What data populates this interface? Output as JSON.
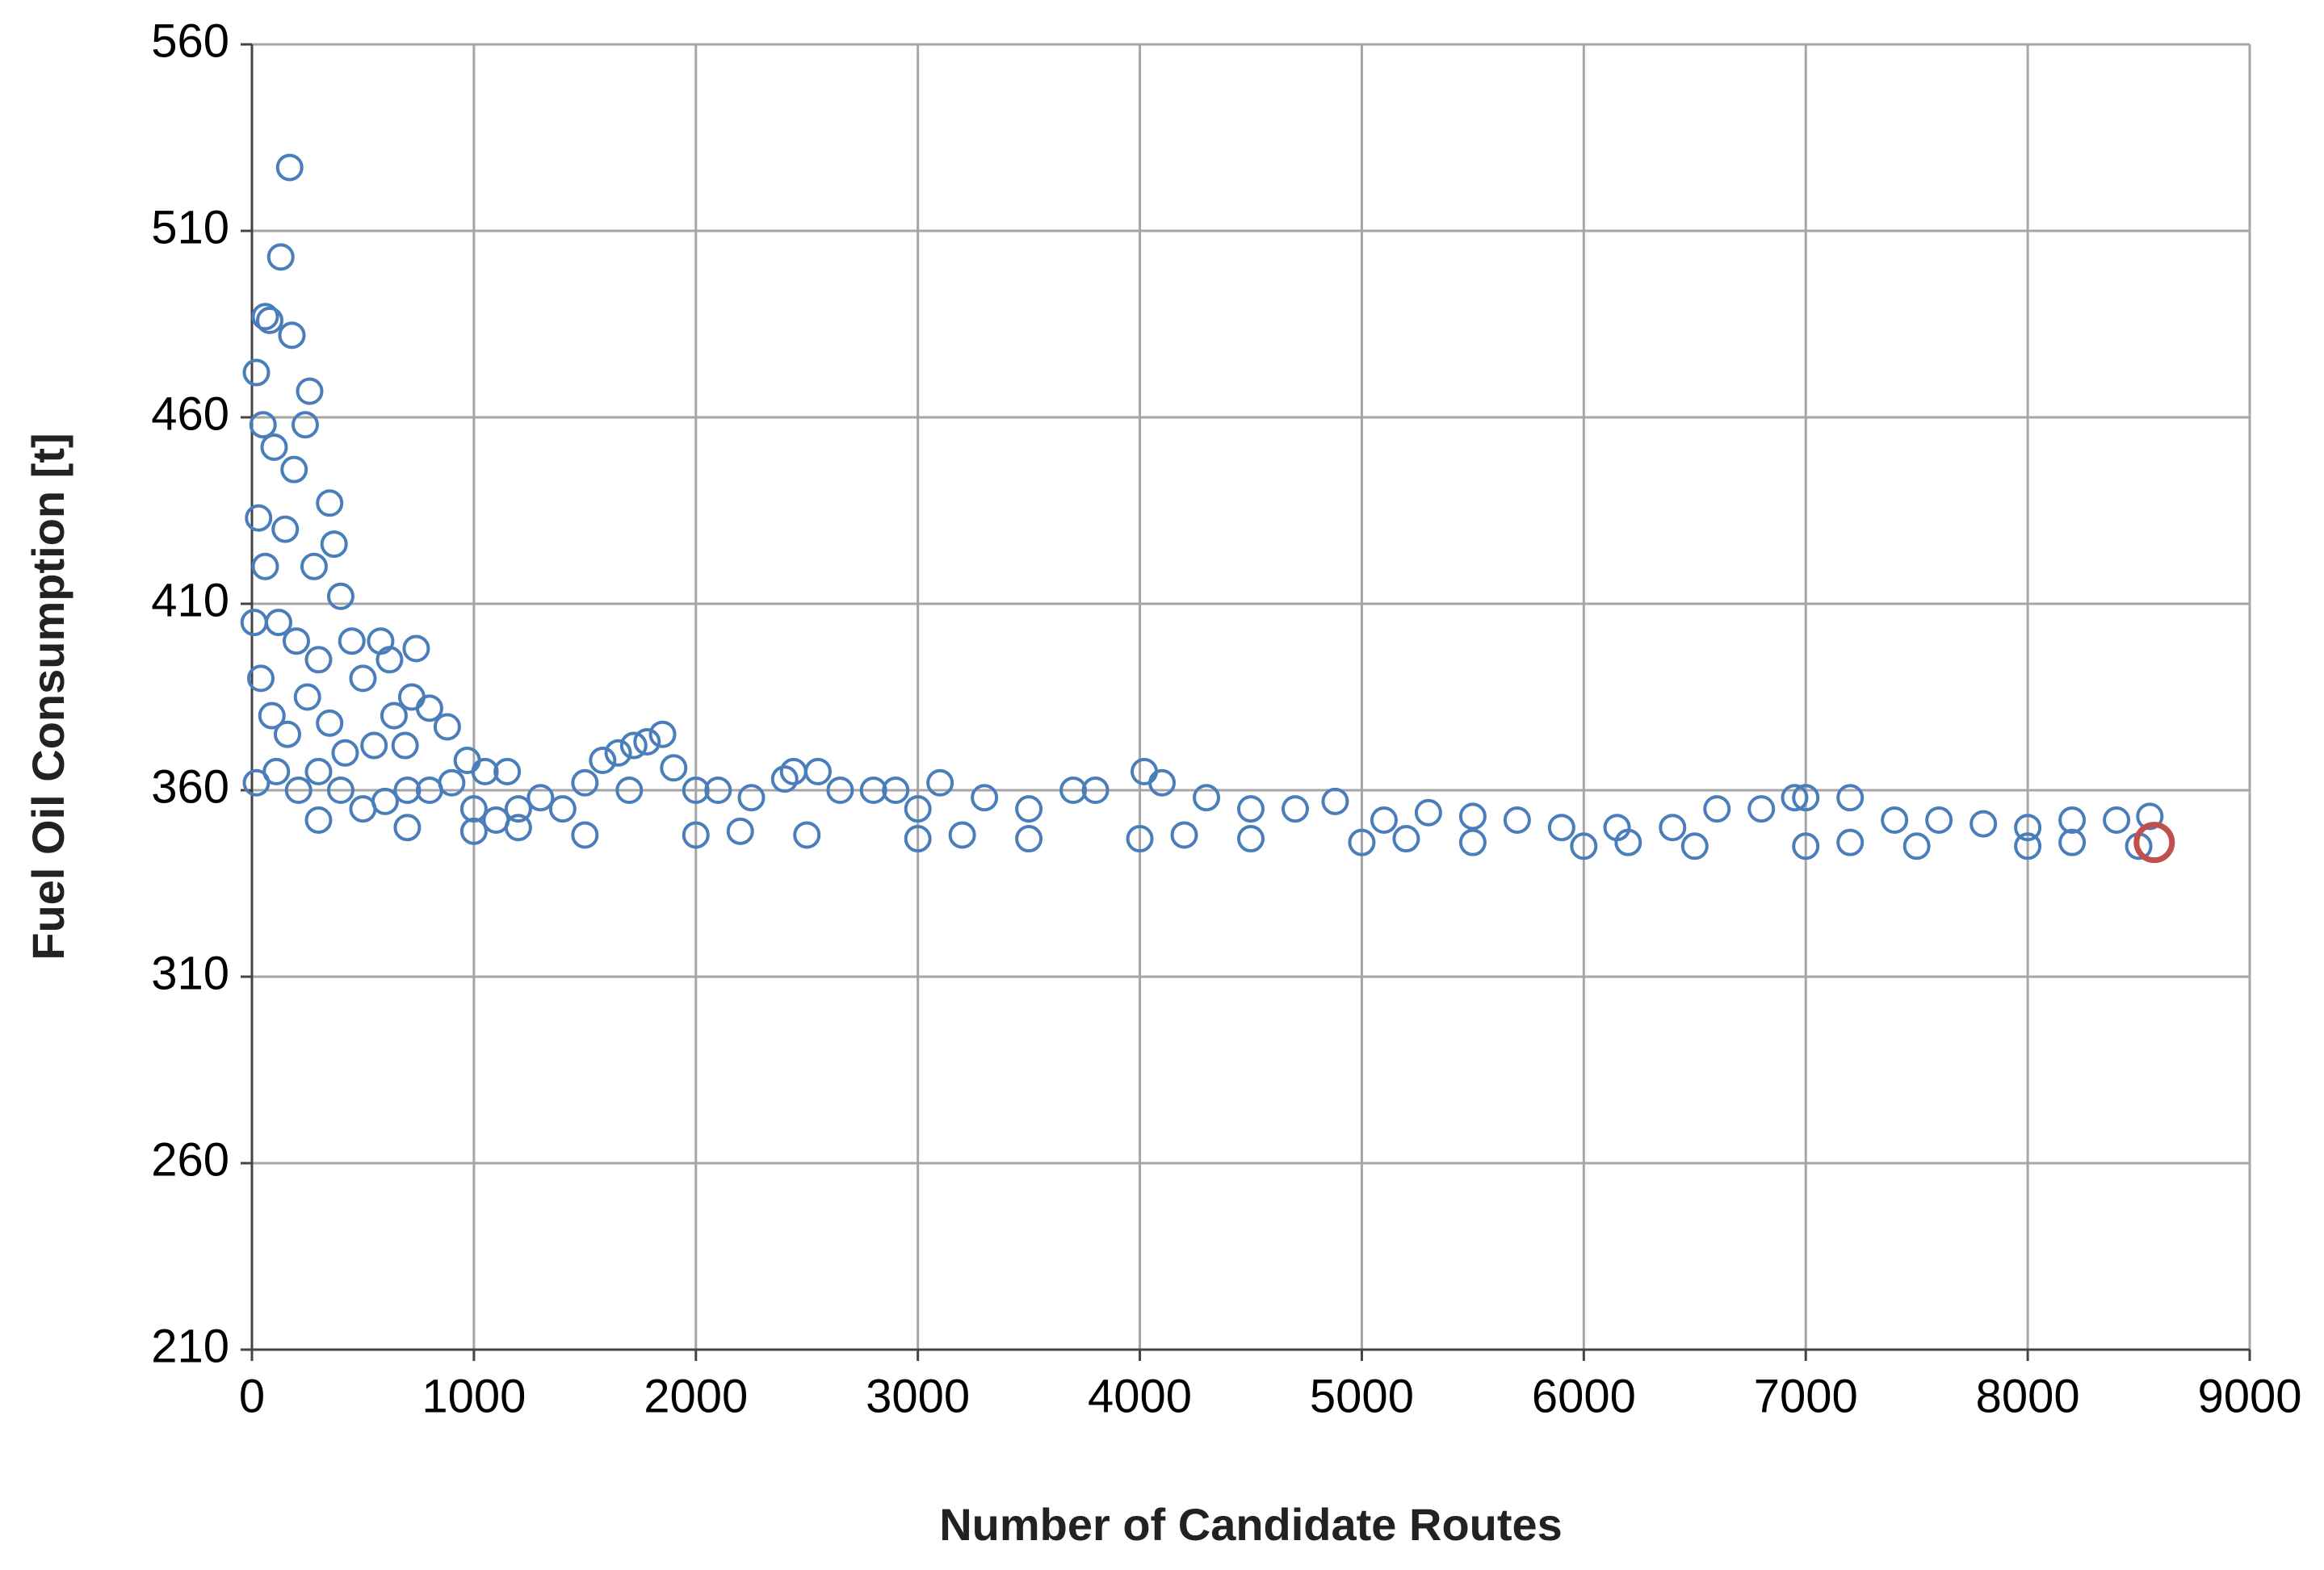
{
  "chart_data": {
    "type": "scatter",
    "x_label": "Number of Candidate Routes",
    "y_label": "Fuel Oil Consumption [t]",
    "xlim": [
      0,
      9000
    ],
    "xticks": [
      0,
      1000,
      2000,
      3000,
      4000,
      5000,
      6000,
      7000,
      8000,
      9000
    ],
    "ylim": [
      210,
      560
    ],
    "yticks": [
      210,
      260,
      310,
      360,
      410,
      460,
      510,
      560
    ],
    "grid": true,
    "series": [
      {
        "color": "#4a7ebb",
        "x": [
          20,
          60,
          80,
          170,
          130,
          180,
          260,
          240,
          50,
          100,
          190,
          30,
          350,
          370,
          60,
          150,
          280,
          400,
          10,
          120,
          200,
          300,
          450,
          580,
          620,
          740,
          500,
          40,
          90,
          160,
          250,
          350,
          640,
          720,
          800,
          880,
          420,
          550,
          690,
          20,
          110,
          210,
          300,
          400,
          500,
          600,
          700,
          800,
          900,
          970,
          1050,
          1150,
          1000,
          1100,
          1200,
          1300,
          1400,
          1500,
          1580,
          1650,
          1720,
          1780,
          1850,
          1900,
          1700,
          2000,
          2100,
          2250,
          2400,
          2440,
          2550,
          2650,
          2800,
          2900,
          3000,
          3100,
          3300,
          3500,
          3700,
          3800,
          4020,
          4100,
          4300,
          4500,
          4700,
          4880,
          5100,
          5300,
          5500,
          5700,
          5900,
          6150,
          6400,
          6600,
          6800,
          6950,
          7000,
          7200,
          7400,
          7600,
          7800,
          8000,
          8200,
          8400,
          8550,
          300,
          700,
          1000,
          1500,
          2000,
          2500,
          3000,
          3500,
          4000,
          4500,
          5000,
          5500,
          6000,
          6500,
          7000,
          7500,
          8000,
          8500,
          1200,
          2200,
          3200,
          4200,
          5200,
          6200,
          7200,
          8200
        ],
        "y": [
          472,
          487,
          486,
          527,
          503,
          482,
          467,
          458,
          458,
          452,
          446,
          433,
          437,
          426,
          420,
          430,
          420,
          412,
          405,
          405,
          400,
          395,
          400,
          400,
          395,
          398,
          390,
          390,
          380,
          375,
          385,
          378,
          380,
          385,
          382,
          377,
          370,
          372,
          372,
          362,
          365,
          360,
          365,
          360,
          355,
          357,
          360,
          360,
          362,
          368,
          365,
          365,
          355,
          352,
          355,
          358,
          355,
          362,
          368,
          370,
          372,
          373,
          375,
          366,
          360,
          360,
          360,
          358,
          363,
          365,
          365,
          360,
          360,
          360,
          355,
          362,
          358,
          355,
          360,
          360,
          365,
          362,
          358,
          355,
          355,
          357,
          352,
          354,
          353,
          352,
          350,
          350,
          350,
          355,
          355,
          358,
          358,
          358,
          352,
          352,
          351,
          350,
          352,
          352,
          353,
          352,
          350,
          349,
          348,
          348,
          348,
          347,
          347,
          347,
          347,
          346,
          346,
          345,
          345,
          345,
          345,
          345,
          345,
          350,
          349,
          348,
          348,
          347,
          346,
          346,
          346
        ]
      },
      {
        "color": "#c0504d",
        "x": [
          8570
        ],
        "y": [
          346
        ]
      }
    ]
  }
}
